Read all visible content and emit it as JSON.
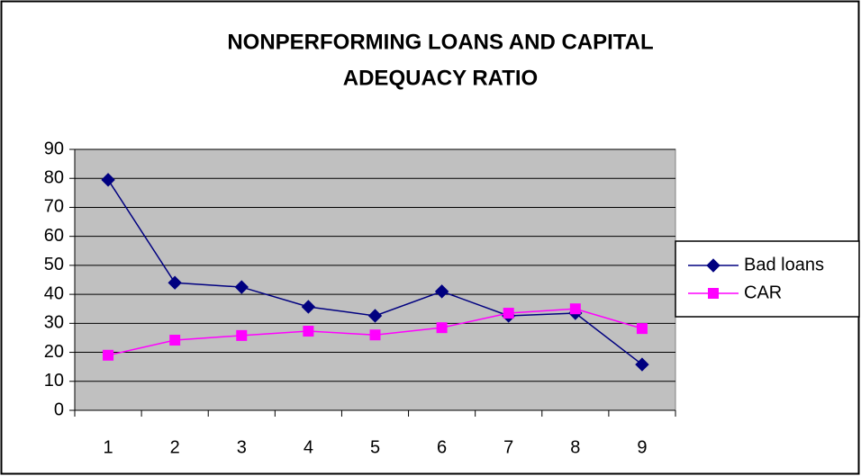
{
  "chart_data": {
    "type": "line",
    "title": [
      "NONPERFORMING LOANS AND CAPITAL",
      "ADEQUACY RATIO"
    ],
    "categories": [
      "1",
      "2",
      "3",
      "4",
      "5",
      "6",
      "7",
      "8",
      "9"
    ],
    "series": [
      {
        "name": "Bad loans",
        "color": "#000080",
        "marker": "diamond",
        "values": [
          79.5,
          44,
          42.5,
          35.7,
          32.6,
          41,
          32.6,
          33.5,
          15.8
        ]
      },
      {
        "name": "CAR",
        "color": "#ff00ff",
        "marker": "square",
        "values": [
          19,
          24.2,
          25.8,
          27.3,
          26,
          28.5,
          33.5,
          35,
          28.2
        ]
      }
    ],
    "ylim": [
      0,
      90
    ],
    "yticks": [
      0,
      10,
      20,
      30,
      40,
      50,
      60,
      70,
      80,
      90
    ],
    "grid": true,
    "legend": "right"
  }
}
